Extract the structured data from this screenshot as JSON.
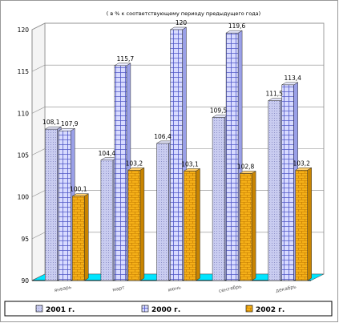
{
  "chart_data": {
    "type": "bar",
    "subtitle": "( в % к  соответствующему  периоду  предыдущего  года)",
    "categories": [
      "январь",
      "март",
      "июнь",
      "сентябрь",
      "декабрь"
    ],
    "ylim": [
      90,
      120
    ],
    "yticks": [
      90,
      95,
      100,
      105,
      110,
      115,
      120
    ],
    "grid": true,
    "legend_position": "bottom",
    "series": [
      {
        "name": "2001 г.",
        "color": "#c9ccf0",
        "pattern": "dots",
        "values": [
          108.1,
          104.4,
          106.4,
          109.5,
          111.5
        ],
        "labels": [
          "108,1",
          "104,4",
          "106,4",
          "109,5",
          "111,5"
        ]
      },
      {
        "name": "2000 г.",
        "color": "#ccd0ff",
        "pattern": "grid",
        "values": [
          107.9,
          115.7,
          120,
          119.6,
          113.4
        ],
        "labels": [
          "107,9",
          "115,7",
          "120",
          "119,6",
          "113,4"
        ]
      },
      {
        "name": "2002 г.",
        "color": "#f5b018",
        "pattern": "brick",
        "values": [
          100.1,
          103.2,
          103.1,
          102.8,
          103.2
        ],
        "labels": [
          "100,1",
          "103,2",
          "103,1",
          "102,8",
          "103,2"
        ]
      }
    ],
    "floor_color": "#00e5ff",
    "wall_color": "#ffffff"
  }
}
